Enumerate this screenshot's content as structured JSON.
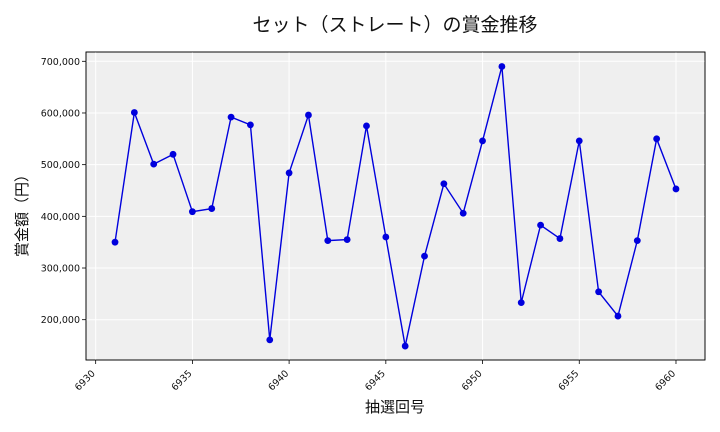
{
  "chart_data": {
    "type": "line",
    "title": "セット（ストレート）の賞金推移",
    "xlabel": "抽選回号",
    "ylabel": "賞金額（円）",
    "x": [
      6931,
      6932,
      6933,
      6934,
      6935,
      6936,
      6937,
      6938,
      6939,
      6940,
      6941,
      6942,
      6943,
      6944,
      6945,
      6946,
      6947,
      6948,
      6949,
      6950,
      6951,
      6952,
      6953,
      6954,
      6955,
      6956,
      6957,
      6958,
      6959,
      6960
    ],
    "series": [
      {
        "values": [
          350000,
          601000,
          501000,
          520000,
          409000,
          415000,
          592000,
          577000,
          161000,
          484000,
          596000,
          353000,
          355000,
          575000,
          360000,
          149000,
          323000,
          463000,
          406000,
          546000,
          690000,
          233000,
          383000,
          357000,
          546000,
          254000,
          207000,
          353000,
          550000,
          453000
        ],
        "color": "#0000dd"
      }
    ],
    "xlim": [
      6929.5,
      6961.5
    ],
    "ylim": [
      122000,
      718000
    ],
    "xticks": [
      6930,
      6935,
      6940,
      6945,
      6950,
      6955,
      6960
    ],
    "xtick_labels": [
      "6930",
      "6935",
      "6940",
      "6945",
      "6950",
      "6955",
      "6960"
    ],
    "yticks": [
      200000,
      300000,
      400000,
      500000,
      600000,
      700000
    ],
    "ytick_labels": [
      "200,000",
      "300,000",
      "400,000",
      "500,000",
      "600,000",
      "700,000"
    ],
    "grid": true,
    "plot_background": "#efefef"
  }
}
